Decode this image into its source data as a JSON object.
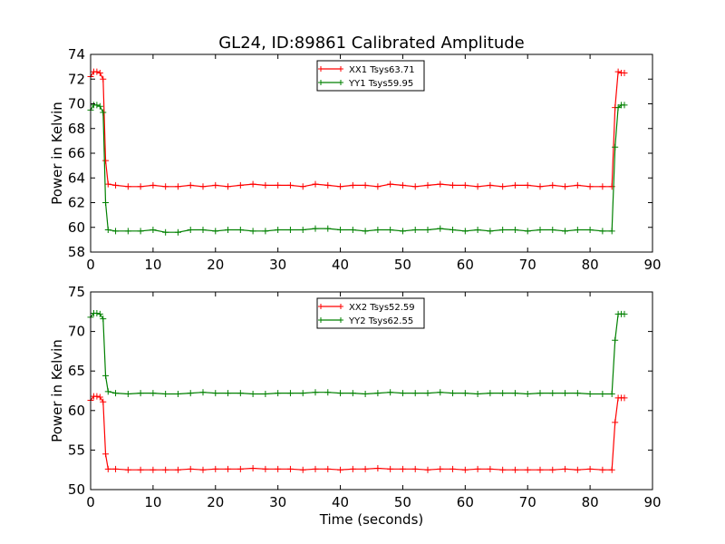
{
  "figure": {
    "title": "GL24, ID:89861 Calibrated Amplitude",
    "xlabel": "Time (seconds)"
  },
  "chart_data": [
    {
      "type": "line",
      "ylabel": "Power in Kelvin",
      "xlabel": "",
      "xlim": [
        0,
        90
      ],
      "ylim": [
        58,
        74
      ],
      "xticks": [
        0,
        10,
        20,
        30,
        40,
        50,
        60,
        70,
        80,
        90
      ],
      "yticks": [
        58,
        60,
        62,
        64,
        66,
        68,
        70,
        72,
        74
      ],
      "grid": false,
      "legend": "top-center",
      "marker": "plus",
      "series": [
        {
          "name": "XX1 Tsys63.71",
          "color": "#ff0000",
          "x": [
            0.0,
            0.5,
            1.0,
            1.5,
            2.0,
            2.4,
            2.8,
            4,
            6,
            8,
            10,
            12,
            14,
            16,
            18,
            20,
            22,
            24,
            26,
            28,
            30,
            32,
            34,
            36,
            38,
            40,
            42,
            44,
            46,
            48,
            50,
            52,
            54,
            56,
            58,
            60,
            62,
            64,
            66,
            68,
            70,
            72,
            74,
            76,
            78,
            80,
            82,
            83.5,
            84.0,
            84.5,
            85.0,
            85.5
          ],
          "values": [
            72.2,
            72.6,
            72.6,
            72.5,
            72.0,
            65.4,
            63.5,
            63.4,
            63.3,
            63.3,
            63.4,
            63.3,
            63.3,
            63.4,
            63.3,
            63.4,
            63.3,
            63.4,
            63.5,
            63.4,
            63.4,
            63.4,
            63.3,
            63.5,
            63.4,
            63.3,
            63.4,
            63.4,
            63.3,
            63.5,
            63.4,
            63.3,
            63.4,
            63.5,
            63.4,
            63.4,
            63.3,
            63.4,
            63.3,
            63.4,
            63.4,
            63.3,
            63.4,
            63.3,
            63.4,
            63.3,
            63.3,
            63.3,
            69.7,
            72.6,
            72.5,
            72.5
          ]
        },
        {
          "name": "YY1 Tsys59.95",
          "color": "#008000",
          "x": [
            0.0,
            0.5,
            1.0,
            1.5,
            2.0,
            2.4,
            2.8,
            4,
            6,
            8,
            10,
            12,
            14,
            16,
            18,
            20,
            22,
            24,
            26,
            28,
            30,
            32,
            34,
            36,
            38,
            40,
            42,
            44,
            46,
            48,
            50,
            52,
            54,
            56,
            58,
            60,
            62,
            64,
            66,
            68,
            70,
            72,
            74,
            76,
            78,
            80,
            82,
            83.5,
            84.0,
            84.5,
            85.0,
            85.5
          ],
          "values": [
            69.5,
            69.9,
            69.9,
            69.8,
            69.3,
            62.0,
            59.8,
            59.7,
            59.7,
            59.7,
            59.8,
            59.6,
            59.6,
            59.8,
            59.8,
            59.7,
            59.8,
            59.8,
            59.7,
            59.7,
            59.8,
            59.8,
            59.8,
            59.9,
            59.9,
            59.8,
            59.8,
            59.7,
            59.8,
            59.8,
            59.7,
            59.8,
            59.8,
            59.9,
            59.8,
            59.7,
            59.8,
            59.7,
            59.8,
            59.8,
            59.7,
            59.8,
            59.8,
            59.7,
            59.8,
            59.8,
            59.7,
            59.7,
            66.5,
            69.7,
            69.9,
            69.9
          ]
        }
      ]
    },
    {
      "type": "line",
      "ylabel": "Power in Kelvin",
      "xlabel": "Time (seconds)",
      "xlim": [
        0,
        90
      ],
      "ylim": [
        50,
        75
      ],
      "xticks": [
        0,
        10,
        20,
        30,
        40,
        50,
        60,
        70,
        80,
        90
      ],
      "yticks": [
        50,
        55,
        60,
        65,
        70,
        75
      ],
      "grid": false,
      "legend": "top-center",
      "marker": "plus",
      "series": [
        {
          "name": "XX2 Tsys52.59",
          "color": "#ff0000",
          "x": [
            0.0,
            0.5,
            1.0,
            1.5,
            2.0,
            2.4,
            2.8,
            4,
            6,
            8,
            10,
            12,
            14,
            16,
            18,
            20,
            22,
            24,
            26,
            28,
            30,
            32,
            34,
            36,
            38,
            40,
            42,
            44,
            46,
            48,
            50,
            52,
            54,
            56,
            58,
            60,
            62,
            64,
            66,
            68,
            70,
            72,
            74,
            76,
            78,
            80,
            82,
            83.5,
            84.0,
            84.5,
            85.0,
            85.5
          ],
          "values": [
            61.3,
            61.8,
            61.8,
            61.7,
            61.1,
            54.5,
            52.6,
            52.6,
            52.5,
            52.5,
            52.5,
            52.5,
            52.5,
            52.6,
            52.5,
            52.6,
            52.6,
            52.6,
            52.7,
            52.6,
            52.6,
            52.6,
            52.5,
            52.6,
            52.6,
            52.5,
            52.6,
            52.6,
            52.7,
            52.6,
            52.6,
            52.6,
            52.5,
            52.6,
            52.6,
            52.5,
            52.6,
            52.6,
            52.5,
            52.5,
            52.5,
            52.5,
            52.5,
            52.6,
            52.5,
            52.6,
            52.5,
            52.5,
            58.5,
            61.6,
            61.6,
            61.6
          ]
        },
        {
          "name": "YY2 Tsys62.55",
          "color": "#008000",
          "x": [
            0.0,
            0.5,
            1.0,
            1.5,
            2.0,
            2.4,
            2.8,
            4,
            6,
            8,
            10,
            12,
            14,
            16,
            18,
            20,
            22,
            24,
            26,
            28,
            30,
            32,
            34,
            36,
            38,
            40,
            42,
            44,
            46,
            48,
            50,
            52,
            54,
            56,
            58,
            60,
            62,
            64,
            66,
            68,
            70,
            72,
            74,
            76,
            78,
            80,
            82,
            83.5,
            84.0,
            84.5,
            85.0,
            85.5
          ],
          "values": [
            71.8,
            72.3,
            72.3,
            72.2,
            71.6,
            64.4,
            62.4,
            62.2,
            62.1,
            62.2,
            62.2,
            62.1,
            62.1,
            62.2,
            62.3,
            62.2,
            62.2,
            62.2,
            62.1,
            62.1,
            62.2,
            62.2,
            62.2,
            62.3,
            62.3,
            62.2,
            62.2,
            62.1,
            62.2,
            62.3,
            62.2,
            62.2,
            62.2,
            62.3,
            62.2,
            62.2,
            62.1,
            62.2,
            62.2,
            62.2,
            62.1,
            62.2,
            62.2,
            62.2,
            62.2,
            62.1,
            62.1,
            62.1,
            68.9,
            72.2,
            72.2,
            72.2
          ]
        }
      ]
    }
  ]
}
